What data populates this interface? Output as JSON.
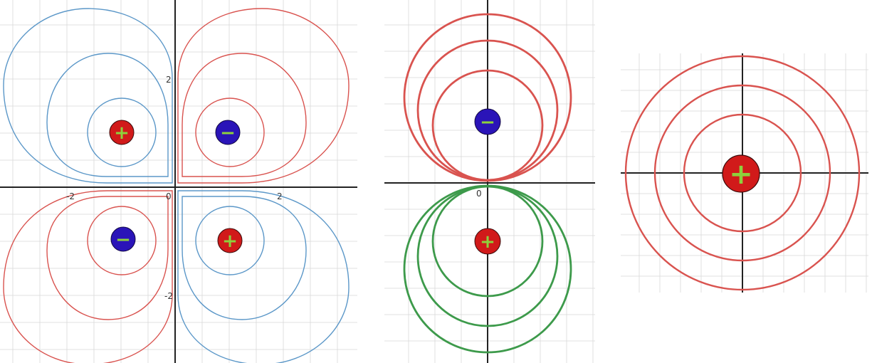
{
  "colors": {
    "blue_contour": "#5b97c8",
    "red_contour": "#d9534f",
    "green_contour": "#3d9a4b",
    "positive_charge": "#d11a1a",
    "negative_charge": "#2a14b8",
    "sign_glyph": "#8dd13c",
    "axis": "#222222",
    "grid": "#d8d8d8"
  },
  "panels": [
    {
      "id": "quadrupole",
      "tick_labels": {
        "x_neg": "-2",
        "origin": "0",
        "x_pos": "2",
        "y_pos": "2",
        "y_neg": "-2"
      },
      "charges": [
        {
          "sign": "+",
          "quadrant": "upper-left"
        },
        {
          "sign": "−",
          "quadrant": "upper-right"
        },
        {
          "sign": "−",
          "quadrant": "lower-left"
        },
        {
          "sign": "+",
          "quadrant": "lower-right"
        }
      ]
    },
    {
      "id": "dipole",
      "tick_labels": {
        "origin": "0"
      },
      "charges": [
        {
          "sign": "−",
          "position": "top"
        },
        {
          "sign": "+",
          "position": "bottom"
        }
      ]
    },
    {
      "id": "monopole",
      "charges": [
        {
          "sign": "+",
          "position": "center"
        }
      ]
    }
  ]
}
